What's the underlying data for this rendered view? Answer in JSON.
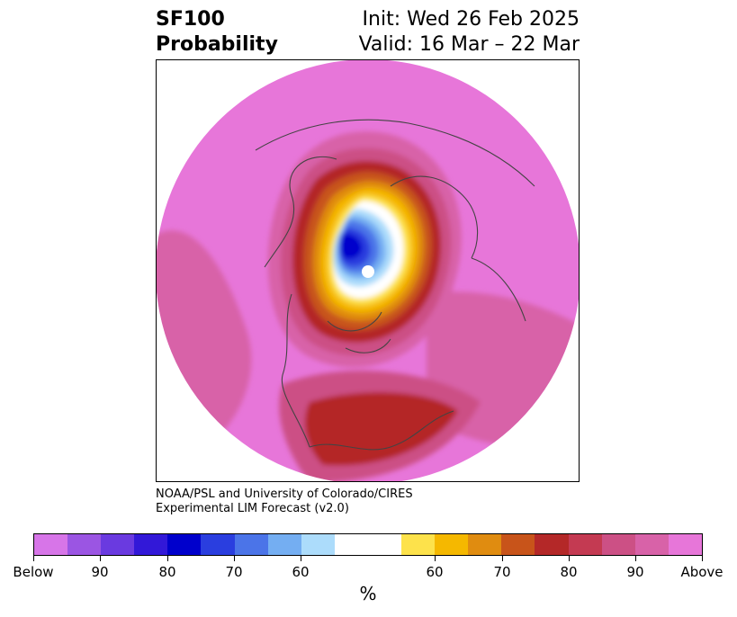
{
  "header": {
    "variable": "SF100",
    "product": "Probability",
    "init": "Init: Wed 26 Feb 2025",
    "valid": "Valid: 16 Mar – 22 Mar"
  },
  "credit": {
    "line1": "NOAA/PSL and University of Colorado/CIRES",
    "line2": "Experimental LIM Forecast (v2.0)"
  },
  "colorbar": {
    "unit": "%",
    "colors": [
      "#d775e8",
      "#9b55e3",
      "#6a3ae0",
      "#3218d8",
      "#0000cc",
      "#2a3edf",
      "#4b74e8",
      "#74aef2",
      "#acdcfb",
      "#ffffff",
      "#fde24b",
      "#f5b800",
      "#e08c10",
      "#c8541a",
      "#b42828",
      "#c43a52",
      "#cc5085",
      "#d862a8",
      "#e776d9"
    ],
    "tick_labels": [
      "Below",
      "90",
      "80",
      "70",
      "60",
      "60",
      "70",
      "80",
      "90",
      "Above"
    ]
  },
  "map": {
    "projection": "polar stereographic (north pole)",
    "colors": {
      "above": "#e776d9",
      "above90": "#d862a8",
      "above80": "#cc5085",
      "above75": "#c43a52",
      "above70": "#b42828",
      "above65": "#c8541a",
      "above60": "#e08c10",
      "near55": "#f5b800",
      "near50": "#fde24b",
      "neutral": "#ffffff",
      "below55": "#acdcfb",
      "below60": "#74aef2",
      "below65": "#4b74e8",
      "below70": "#2a3edf",
      "below75": "#0000cc",
      "outline": "#444444"
    }
  }
}
